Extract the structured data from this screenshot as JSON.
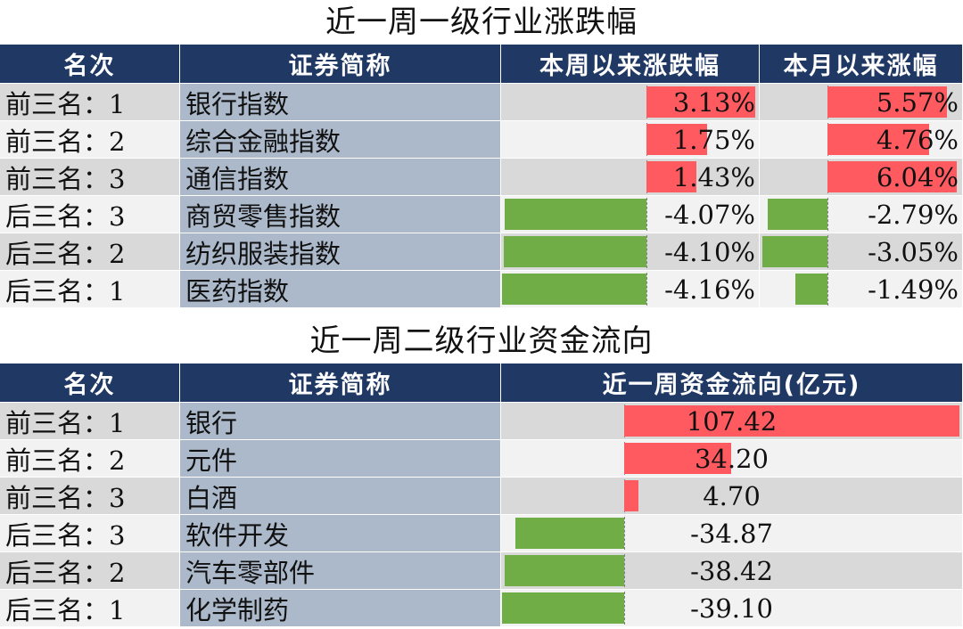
{
  "table1": {
    "title": "近一周一级行业涨跌幅",
    "headers": [
      "名次",
      "证券简称",
      "本周以来涨跌幅",
      "本月以来涨幅"
    ],
    "rows": [
      {
        "rank": "前三名：1",
        "name": "银行指数",
        "week": "3.13%",
        "week_value": 3.13,
        "month": "5.57%",
        "month_value": 5.57
      },
      {
        "rank": "前三名：2",
        "name": "综合金融指数",
        "week": "1.75%",
        "week_value": 1.75,
        "month": "4.76%",
        "month_value": 4.76
      },
      {
        "rank": "前三名：3",
        "name": "通信指数",
        "week": "1.43%",
        "week_value": 1.43,
        "month": "6.04%",
        "month_value": 6.04
      },
      {
        "rank": "后三名：3",
        "name": "商贸零售指数",
        "week": "-4.07%",
        "week_value": -4.07,
        "month": "-2.79%",
        "month_value": -2.79
      },
      {
        "rank": "后三名：2",
        "name": "纺织服装指数",
        "week": "-4.10%",
        "week_value": -4.1,
        "month": "-3.05%",
        "month_value": -3.05
      },
      {
        "rank": "后三名：1",
        "name": "医药指数",
        "week": "-4.16%",
        "week_value": -4.16,
        "month": "-1.49%",
        "month_value": -1.49
      }
    ]
  },
  "table2": {
    "title": "近一周二级行业资金流向",
    "headers": [
      "名次",
      "证券简称",
      "近一周资金流向(亿元)"
    ],
    "rows": [
      {
        "rank": "前三名：1",
        "name": "银行",
        "flow": "107.42",
        "flow_value": 107.42
      },
      {
        "rank": "前三名：2",
        "name": "元件",
        "flow": "34.20",
        "flow_value": 34.2
      },
      {
        "rank": "前三名：3",
        "name": "白酒",
        "flow": "4.70",
        "flow_value": 4.7
      },
      {
        "rank": "后三名：3",
        "name": "软件开发",
        "flow": "-34.87",
        "flow_value": -34.87
      },
      {
        "rank": "后三名：2",
        "name": "汽车零部件",
        "flow": "-38.42",
        "flow_value": -38.42
      },
      {
        "rank": "后三名：1",
        "name": "化学制药",
        "flow": "-39.10",
        "flow_value": -39.1
      }
    ]
  },
  "colors": {
    "header_bg": "#203864",
    "header_text": "#ffffff",
    "name_bg": "#acb9ca",
    "row_gray": "#d9d9d9",
    "row_light": "#f2f2f2",
    "positive_bar": "#ff5a5f",
    "negative_bar": "#70ad47"
  }
}
